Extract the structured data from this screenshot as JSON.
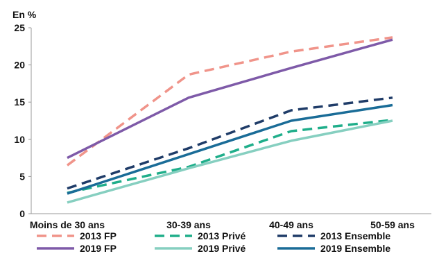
{
  "chart_data": {
    "type": "line",
    "ylabel": "En %",
    "ylim": [
      0,
      25
    ],
    "yticks": [
      0,
      5,
      10,
      15,
      20,
      25
    ],
    "categories": [
      "Moins de 30 ans",
      "30-39 ans",
      "40-49 ans",
      "50-59 ans"
    ],
    "legend_position": "bottom",
    "grid": false,
    "series": [
      {
        "name": "2013 FP",
        "values": [
          6.5,
          18.7,
          21.8,
          23.7
        ],
        "color": "#f0948a",
        "dash": "dashed"
      },
      {
        "name": "2013 Privé",
        "values": [
          2.8,
          6.3,
          11.1,
          12.6
        ],
        "color": "#1fae8a",
        "dash": "dashed"
      },
      {
        "name": "2013 Ensemble",
        "values": [
          3.4,
          8.8,
          13.9,
          15.6
        ],
        "color": "#1f3c68",
        "dash": "dashed"
      },
      {
        "name": "2019 FP",
        "values": [
          7.5,
          15.6,
          19.6,
          23.4
        ],
        "color": "#7e5aa8",
        "dash": "solid"
      },
      {
        "name": "2019 Privé",
        "values": [
          1.5,
          6.1,
          9.8,
          12.5
        ],
        "color": "#86cfc0",
        "dash": "solid"
      },
      {
        "name": "2019 Ensemble",
        "values": [
          2.7,
          8.0,
          12.5,
          14.6
        ],
        "color": "#1a6c97",
        "dash": "solid"
      }
    ]
  }
}
